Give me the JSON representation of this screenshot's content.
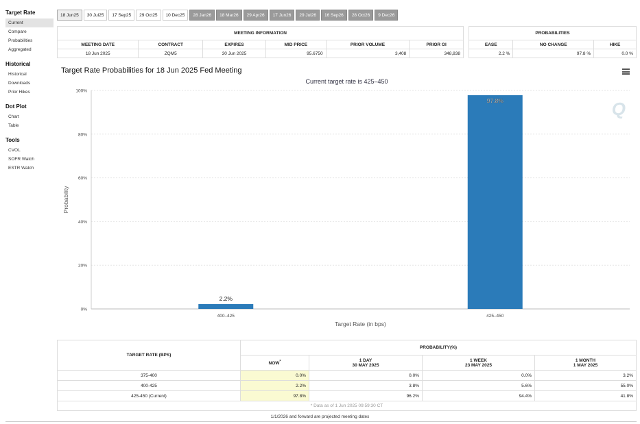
{
  "sidebar": {
    "sections": [
      {
        "title": "Target Rate",
        "items": [
          "Current",
          "Compare",
          "Probabilities",
          "Aggregated"
        ]
      },
      {
        "title": "Historical",
        "items": [
          "Historical",
          "Downloads",
          "Prior Hikes"
        ]
      },
      {
        "title": "Dot Plot",
        "items": [
          "Chart",
          "Table"
        ]
      },
      {
        "title": "Tools",
        "items": [
          "CVOL",
          "SOFR Watch",
          "ESTR Watch"
        ]
      }
    ]
  },
  "tabs": [
    "18 Jun25",
    "30 Jul25",
    "17 Sep25",
    "29 Oct25",
    "10 Dec25",
    "28 Jan26",
    "18 Mar26",
    "29 Apr26",
    "17 Jun26",
    "29 Jul26",
    "16 Sep26",
    "28 Oct26",
    "9 Dec26"
  ],
  "meeting_info": {
    "heading": "MEETING INFORMATION",
    "columns": [
      "MEETING DATE",
      "CONTRACT",
      "EXPIRES",
      "MID PRICE",
      "PRIOR VOLUME",
      "PRIOR OI"
    ],
    "row": [
      "18 Jun 2025",
      "ZQM5",
      "30 Jun 2025",
      "95.6750",
      "3,408",
      "348,838"
    ]
  },
  "probabilities": {
    "heading": "PROBABILITIES",
    "columns": [
      "EASE",
      "NO CHANGE",
      "HIKE"
    ],
    "row": [
      "2.2 %",
      "97.8 %",
      "0.0 %"
    ]
  },
  "chart_data": {
    "type": "bar",
    "title": "Target Rate Probabilities for 18 Jun 2025 Fed Meeting",
    "subtitle": "Current target rate is 425–450",
    "categories": [
      "400–425",
      "425–450"
    ],
    "values": [
      2.2,
      97.8
    ],
    "data_labels": [
      "2.2%",
      "97.8%"
    ],
    "xlabel": "Target Rate (in bps)",
    "ylabel": "Probability",
    "ylim": [
      0,
      100
    ],
    "yticks": [
      "0%",
      "20%",
      "40%",
      "60%",
      "80%",
      "100%"
    ],
    "grid": true,
    "bar_color": "#2b7bb9"
  },
  "prob_table": {
    "col_target": "TARGET RATE (BPS)",
    "col_group": "PROBABILITY(%)",
    "col_now": "NOW",
    "col_now_mark": "*",
    "col_1day": "1 DAY",
    "col_1day_date": "30 MAY 2025",
    "col_1week": "1 WEEK",
    "col_1week_date": "23 MAY 2025",
    "col_1month": "1 MONTH",
    "col_1month_date": "1 MAY 2025",
    "rows": [
      {
        "rate": "375-400",
        "now": "0.0%",
        "day": "0.0%",
        "week": "0.0%",
        "month": "3.2%"
      },
      {
        "rate": "400-425",
        "now": "2.2%",
        "day": "3.8%",
        "week": "5.6%",
        "month": "55.0%"
      },
      {
        "rate": "425-450 (Current)",
        "now": "97.8%",
        "day": "96.2%",
        "week": "94.4%",
        "month": "41.8%"
      }
    ],
    "note": "* Data as of 1 Jun 2025 09:59:30 CT"
  },
  "footer": "1/1/2026 and forward are projected meeting dates",
  "icons": {
    "menu": "hamburger-menu-icon",
    "logo": "q-logo"
  },
  "logo_text": "Q"
}
